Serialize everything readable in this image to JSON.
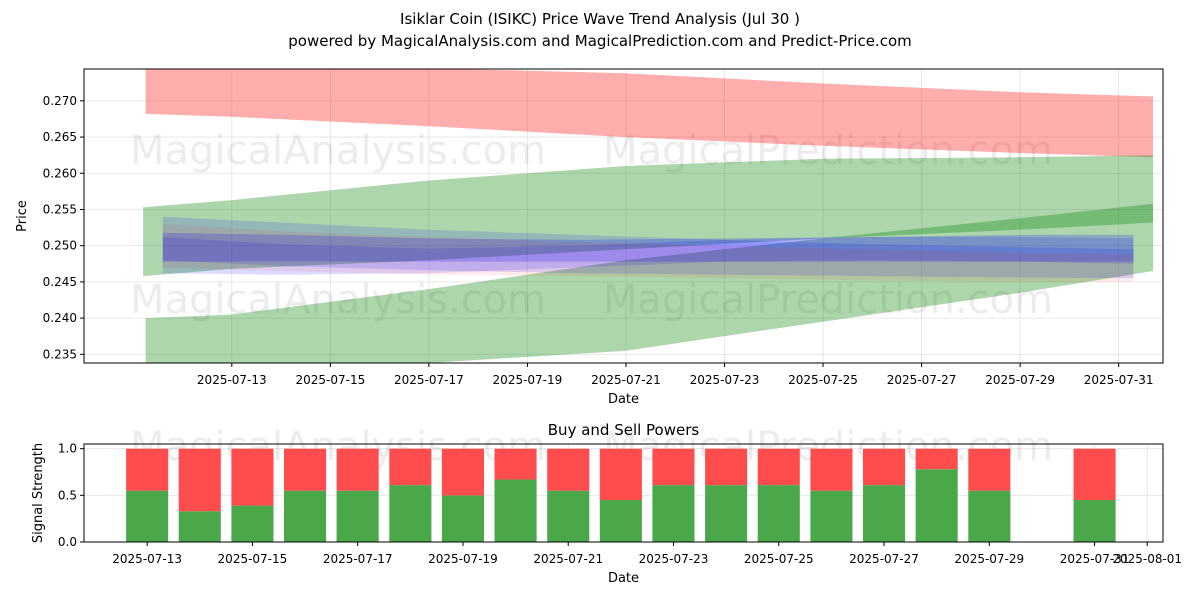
{
  "title": "Isiklar Coin (ISIKC) Price Wave Trend Analysis (Jul 30 )",
  "subtitle": "powered by MagicalAnalysis.com and MagicalPrediction.com and Predict-Price.com",
  "watermarks": [
    "MagicalAnalysis.com",
    "MagicalPrediction.com"
  ],
  "colors": {
    "red": "#ff0000",
    "green": "#008000",
    "blue": "#0000ff",
    "buy": "#4aa84a",
    "sell": "#ff4d4d"
  },
  "chart_data": [
    {
      "type": "area",
      "xlabel": "Date",
      "ylabel": "Price",
      "x_ticks": [
        "2025-07-13",
        "2025-07-15",
        "2025-07-17",
        "2025-07-19",
        "2025-07-21",
        "2025-07-23",
        "2025-07-25",
        "2025-07-27",
        "2025-07-29",
        "2025-07-31"
      ],
      "y_ticks": [
        "0.235",
        "0.240",
        "0.245",
        "0.250",
        "0.255",
        "0.260",
        "0.265",
        "0.270"
      ],
      "xlim": [
        "2025-07-10",
        "2025-07-31.9"
      ],
      "ylim": [
        0.2338,
        0.2744
      ],
      "grid": true,
      "bands": [
        {
          "color": "red",
          "opacity": 0.32,
          "x": [
            "2025-07-11.25",
            "2025-07-13",
            "2025-07-17",
            "2025-07-21",
            "2025-07-25",
            "2025-07-29",
            "2025-07-31.7"
          ],
          "upper": [
            0.2745,
            0.2745,
            0.2745,
            0.2738,
            0.2724,
            0.2712,
            0.2706
          ],
          "lower": [
            0.2682,
            0.2678,
            0.2665,
            0.265,
            0.2638,
            0.2628,
            0.2622
          ]
        },
        {
          "color": "green",
          "opacity": 0.32,
          "x": [
            "2025-07-11.2",
            "2025-07-13",
            "2025-07-17",
            "2025-07-21",
            "2025-07-25",
            "2025-07-29",
            "2025-07-31.7"
          ],
          "upper": [
            0.2553,
            0.2563,
            0.259,
            0.261,
            0.262,
            0.2622,
            0.2625
          ],
          "lower": [
            0.2458,
            0.2468,
            0.248,
            0.2495,
            0.251,
            0.2522,
            0.2532
          ]
        },
        {
          "color": "green",
          "opacity": 0.32,
          "x": [
            "2025-07-11.25",
            "2025-07-13",
            "2025-07-17",
            "2025-07-21",
            "2025-07-25",
            "2025-07-29",
            "2025-07-31.7"
          ],
          "upper": [
            0.24,
            0.2405,
            0.244,
            0.248,
            0.251,
            0.2538,
            0.2558
          ],
          "lower": [
            0.2338,
            0.2338,
            0.2338,
            0.2355,
            0.2395,
            0.2435,
            0.2465
          ]
        },
        {
          "color": "blue",
          "opacity": 0.2,
          "x": [
            "2025-07-11.6",
            "2025-07-14",
            "2025-07-17",
            "2025-07-20",
            "2025-07-23",
            "2025-07-26",
            "2025-07-29",
            "2025-07-31.3"
          ],
          "upper": [
            0.2518,
            0.2515,
            0.251,
            0.2508,
            0.251,
            0.2512,
            0.2515,
            0.2515
          ],
          "lower": [
            0.2478,
            0.2478,
            0.2478,
            0.2478,
            0.2478,
            0.2478,
            0.2478,
            0.2478
          ]
        },
        {
          "color": "blue",
          "opacity": 0.14,
          "x": [
            "2025-07-11.6",
            "2025-07-14",
            "2025-07-17",
            "2025-07-20",
            "2025-07-23",
            "2025-07-26",
            "2025-07-29",
            "2025-07-31.3"
          ],
          "upper": [
            0.254,
            0.2532,
            0.2522,
            0.2515,
            0.2508,
            0.2502,
            0.2498,
            0.2495
          ],
          "lower": [
            0.248,
            0.2472,
            0.2466,
            0.2462,
            0.246,
            0.2458,
            0.2456,
            0.2455
          ]
        },
        {
          "color": "blue",
          "opacity": 0.14,
          "x": [
            "2025-07-11.6",
            "2025-07-14",
            "2025-07-17",
            "2025-07-20",
            "2025-07-23",
            "2025-07-26",
            "2025-07-29",
            "2025-07-31.3"
          ],
          "upper": [
            0.2512,
            0.2502,
            0.2496,
            0.25,
            0.2508,
            0.2512,
            0.2512,
            0.251
          ],
          "lower": [
            0.2462,
            0.246,
            0.2462,
            0.247,
            0.2478,
            0.248,
            0.2478,
            0.2475
          ]
        },
        {
          "color": "red",
          "opacity": 0.08,
          "x": [
            "2025-07-11.6",
            "2025-07-14",
            "2025-07-17",
            "2025-07-20",
            "2025-07-23",
            "2025-07-26",
            "2025-07-29",
            "2025-07-31.3"
          ],
          "upper": [
            0.253,
            0.252,
            0.2512,
            0.2505,
            0.25,
            0.2495,
            0.249,
            0.2488
          ],
          "lower": [
            0.247,
            0.2465,
            0.246,
            0.2458,
            0.2455,
            0.2452,
            0.245,
            0.245
          ]
        }
      ]
    },
    {
      "type": "bar",
      "title": "Buy and Sell Powers",
      "xlabel": "Date",
      "ylabel": "Signal Strength",
      "x_ticks": [
        "2025-07-13",
        "2025-07-15",
        "2025-07-17",
        "2025-07-19",
        "2025-07-21",
        "2025-07-23",
        "2025-07-25",
        "2025-07-27",
        "2025-07-29",
        "2025-07-31",
        "2025-08-01"
      ],
      "y_ticks": [
        "0.0",
        "0.5",
        "1.0"
      ],
      "ylim": [
        0,
        1.05
      ],
      "grid": true,
      "categories": [
        "2025-07-13",
        "2025-07-14",
        "2025-07-15",
        "2025-07-16",
        "2025-07-17",
        "2025-07-18",
        "2025-07-19",
        "2025-07-20",
        "2025-07-21",
        "2025-07-22",
        "2025-07-23",
        "2025-07-24",
        "2025-07-25",
        "2025-07-26",
        "2025-07-27",
        "2025-07-28",
        "2025-07-29",
        "2025-07-31"
      ],
      "series": [
        {
          "name": "Buy",
          "color": "buy",
          "values": [
            0.55,
            0.33,
            0.39,
            0.55,
            0.55,
            0.61,
            0.5,
            0.67,
            0.55,
            0.45,
            0.61,
            0.61,
            0.61,
            0.55,
            0.61,
            0.78,
            0.55,
            0.45
          ]
        },
        {
          "name": "Sell",
          "color": "sell",
          "values": [
            0.45,
            0.67,
            0.61,
            0.45,
            0.45,
            0.39,
            0.5,
            0.33,
            0.45,
            0.55,
            0.39,
            0.39,
            0.39,
            0.45,
            0.39,
            0.22,
            0.45,
            0.55
          ]
        }
      ]
    }
  ]
}
